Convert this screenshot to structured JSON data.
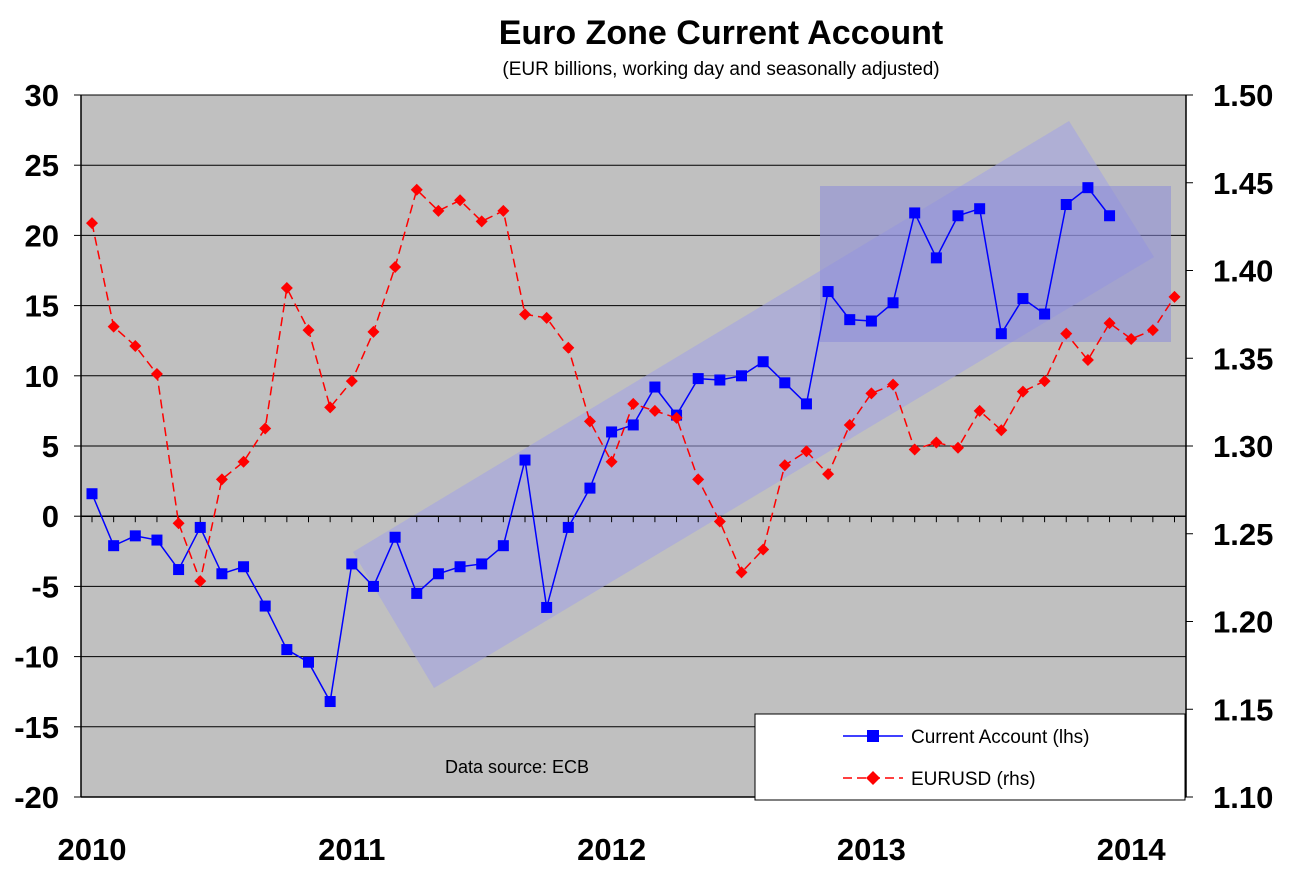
{
  "chart_data": {
    "type": "line",
    "title": "Euro Zone Current Account",
    "subtitle": "(EUR billions, working day and seasonally adjusted)",
    "source_note": "Data source: ECB",
    "x_start_year": 2010,
    "x_tick_labels": [
      "2010",
      "2011",
      "2012",
      "2013",
      "2014"
    ],
    "y_left": {
      "ylim": [
        -20,
        30
      ],
      "step": 5,
      "tick_labels": [
        "-20",
        "-15",
        "-10",
        "-5",
        "0",
        "5",
        "10",
        "15",
        "20",
        "25",
        "30"
      ]
    },
    "y_right": {
      "ylim": [
        1.1,
        1.5
      ],
      "step": 0.05,
      "tick_labels": [
        "1.10",
        "1.15",
        "1.20",
        "1.25",
        "1.30",
        "1.35",
        "1.40",
        "1.45",
        "1.50"
      ]
    },
    "grid": true,
    "legend_placement": "bottom-right",
    "series": [
      {
        "name": "Current Account (lhs)",
        "axis": "left",
        "color": "#0000ff",
        "marker": "square",
        "line_style": "solid",
        "values": [
          1.6,
          -2.1,
          -1.4,
          -1.7,
          -3.8,
          -0.8,
          -4.1,
          -3.6,
          -6.4,
          -9.5,
          -10.4,
          -13.2,
          -3.4,
          -5.0,
          -1.5,
          -5.5,
          -4.1,
          -3.6,
          -3.4,
          -2.1,
          4.0,
          -6.5,
          -0.8,
          2.0,
          6.0,
          6.5,
          9.2,
          7.2,
          9.8,
          9.7,
          10.0,
          11.0,
          9.5,
          8.0,
          16.0,
          14.0,
          13.9,
          15.2,
          21.6,
          18.4,
          21.4,
          21.9,
          13.0,
          15.5,
          14.4,
          22.2,
          23.4,
          21.4
        ]
      },
      {
        "name": "EURUSD (rhs)",
        "axis": "right",
        "color": "#ff0000",
        "marker": "diamond",
        "line_style": "dashed",
        "values": [
          1.427,
          1.368,
          1.357,
          1.341,
          1.256,
          1.223,
          1.281,
          1.291,
          1.31,
          1.39,
          1.366,
          1.322,
          1.337,
          1.365,
          1.402,
          1.446,
          1.434,
          1.44,
          1.428,
          1.434,
          1.375,
          1.373,
          1.356,
          1.314,
          1.291,
          1.324,
          1.32,
          1.316,
          1.281,
          1.257,
          1.228,
          1.241,
          1.289,
          1.297,
          1.284,
          1.312,
          1.33,
          1.335,
          1.298,
          1.302,
          1.299,
          1.32,
          1.309,
          1.331,
          1.337,
          1.364,
          1.349,
          1.37,
          1.361,
          1.366,
          1.385
        ]
      }
    ],
    "annotations": [
      {
        "type": "shaded-band",
        "description": "rising trend channel"
      },
      {
        "type": "shaded-rectangle",
        "description": "2013 range"
      }
    ]
  }
}
